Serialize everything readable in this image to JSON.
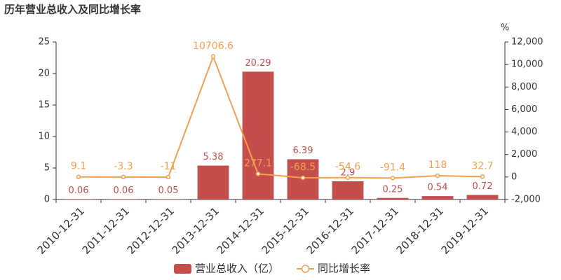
{
  "chart_data": {
    "type": "bar",
    "title": "历年营业总收入及同比增长率",
    "y2_label": "%",
    "categories": [
      "2010-12-31",
      "2011-12-31",
      "2012-12-31",
      "2013-12-31",
      "2014-12-31",
      "2015-12-31",
      "2016-12-31",
      "2017-12-31",
      "2018-12-31",
      "2019-12-31"
    ],
    "series": [
      {
        "name": "营业总收入（亿）",
        "type": "bar",
        "color": "#c44e4c",
        "values": [
          0.06,
          0.06,
          0.05,
          5.38,
          20.29,
          6.39,
          2.9,
          0.25,
          0.54,
          0.72
        ]
      },
      {
        "name": "同比增长率",
        "type": "line",
        "axis": "y2",
        "color": "#f2a04e",
        "values": [
          9.1,
          -3.3,
          -11,
          10706.6,
          277.1,
          -68.5,
          -54.6,
          -91.4,
          118,
          32.7
        ]
      }
    ],
    "ylim": [
      0,
      25
    ],
    "yticks": [
      0,
      5,
      10,
      15,
      20,
      25
    ],
    "y2lim": [
      -2000,
      12000
    ],
    "y2ticks": [
      {
        "value": -2000,
        "label": "-2,000"
      },
      0,
      {
        "value": 2000,
        "label": "2,000"
      },
      {
        "value": 4000,
        "label": "4,000"
      },
      {
        "value": 6000,
        "label": "6,000"
      },
      {
        "value": 8000,
        "label": "8,000"
      },
      {
        "value": 10000,
        "label": "10,000"
      },
      {
        "value": 12000,
        "label": "12,000"
      }
    ],
    "grid": false
  }
}
